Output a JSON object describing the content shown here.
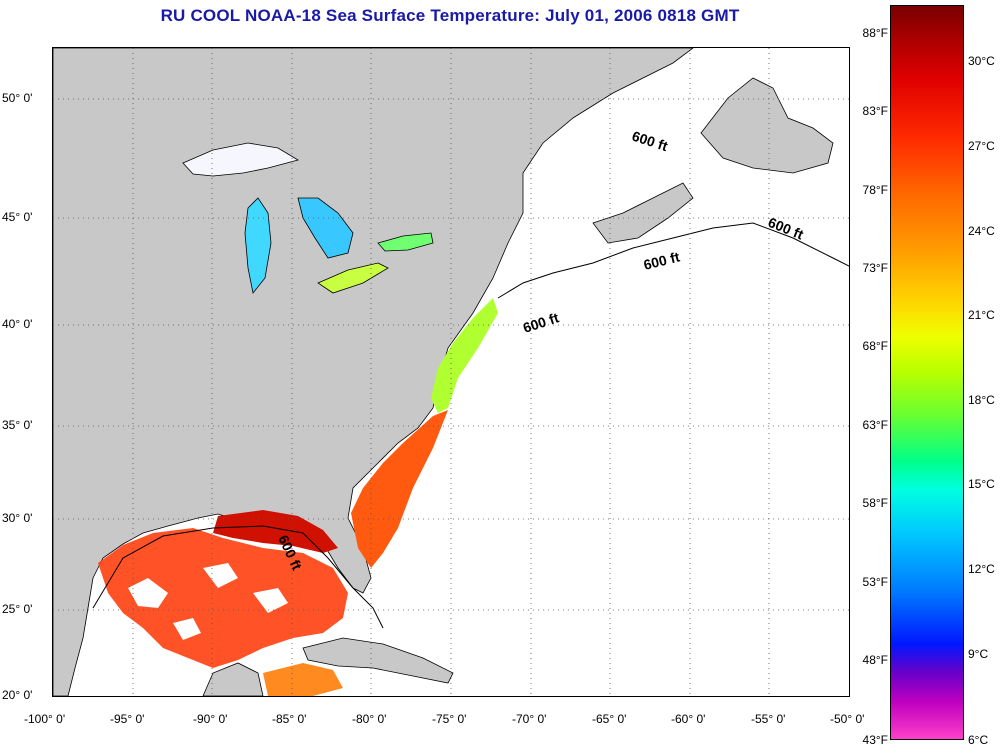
{
  "title": "RU COOL  NOAA-18  Sea Surface Temperature:  July 01, 2006 0818 GMT",
  "lat_labels": [
    "50° 0'",
    "45° 0'",
    "40° 0'",
    "35° 0'",
    "30° 0'",
    "25° 0'",
    "20° 0'"
  ],
  "lon_labels": [
    "-100° 0'",
    "-95° 0'",
    "-90° 0'",
    "-85° 0'",
    "-80° 0'",
    "-75° 0'",
    "-70° 0'",
    "-65° 0'",
    "-60° 0'",
    "-55° 0'",
    "-50° 0'"
  ],
  "colorbar": {
    "fahrenheit": [
      "88°F",
      "83°F",
      "78°F",
      "73°F",
      "68°F",
      "63°F",
      "58°F",
      "53°F",
      "48°F",
      "43°F"
    ],
    "celsius": [
      "30°C",
      "27°C",
      "24°C",
      "21°C",
      "18°C",
      "15°C",
      "12°C",
      "9°C",
      "6°C"
    ]
  },
  "contour_label": "600 ft",
  "colors": {
    "land": "#c8c8c8",
    "ocean_nodata": "#ffffff",
    "title": "#1a1aa8"
  }
}
